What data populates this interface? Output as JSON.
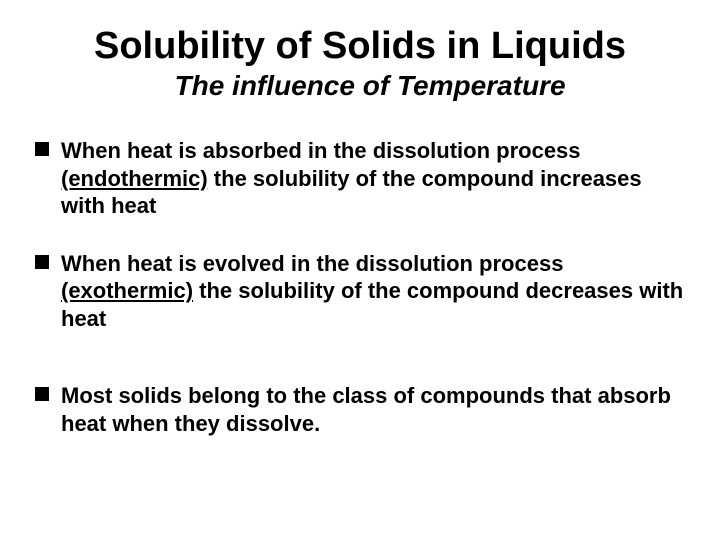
{
  "title": "Solubility of Solids in Liquids",
  "subtitle": "The influence of Temperature",
  "bullets": [
    {
      "pre": "When heat is absorbed in the dissolution process ",
      "underlined": "(endothermic)",
      "post": " the solubility of the compound increases with heat"
    },
    {
      "pre": "When heat is evolved in the dissolution process ",
      "underlined": "(exothermic)",
      "post": " the solubility of the compound decreases with heat"
    },
    {
      "pre": "Most solids belong to the class of compounds that absorb heat when they dissolve.",
      "underlined": "",
      "post": ""
    }
  ],
  "colors": {
    "background": "#ffffff",
    "text": "#000000",
    "bullet": "#000000"
  },
  "typography": {
    "title_fontsize": 38,
    "subtitle_fontsize": 28,
    "body_fontsize": 22,
    "font_family": "Arial"
  }
}
